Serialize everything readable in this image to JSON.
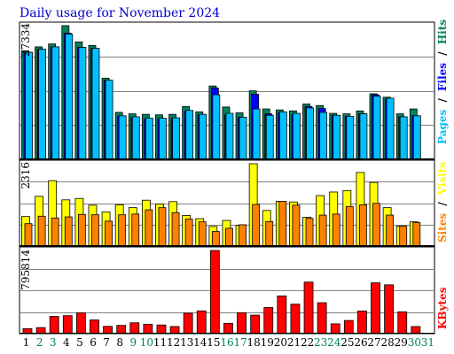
{
  "title": "Daily usage for November 2024",
  "colors": {
    "title": "#0000cc",
    "hits": "#00805c",
    "files": "#0000ff",
    "pages": "#00c0ff",
    "visits": "#ffff00",
    "sites": "#ff8000",
    "kbytes": "#ff0000",
    "weekend": "#00805c",
    "weekday": "#000000",
    "grid": "#808080"
  },
  "chart_data": [
    {
      "type": "bar",
      "panel": "hits-files-pages",
      "categories": [
        "1",
        "2",
        "3",
        "4",
        "5",
        "6",
        "7",
        "8",
        "9",
        "10",
        "11",
        "12",
        "13",
        "14",
        "15",
        "16",
        "17",
        "18",
        "19",
        "20",
        "21",
        "22",
        "23",
        "24",
        "25",
        "26",
        "27",
        "28",
        "29",
        "30",
        "31"
      ],
      "weekend_days": [
        "2",
        "3",
        "9",
        "10",
        "16",
        "17",
        "23",
        "24",
        "30",
        "31"
      ],
      "y_max_label": "27334",
      "ylim": [
        0,
        27334
      ],
      "series": [
        {
          "name": "Hits",
          "values": [
            22200,
            23000,
            23600,
            27334,
            24000,
            23300,
            16600,
            9600,
            9300,
            9200,
            9100,
            9200,
            10800,
            9700,
            15000,
            10700,
            9500,
            14000,
            10300,
            10100,
            9900,
            11300,
            11000,
            9400,
            9300,
            9900,
            13400,
            12700,
            9300,
            10300,
            0
          ]
        },
        {
          "name": "Files",
          "values": [
            21900,
            22500,
            23000,
            25800,
            22900,
            22700,
            16100,
            8800,
            8500,
            8200,
            8300,
            8400,
            9800,
            9100,
            14600,
            9100,
            8600,
            13300,
            9300,
            9500,
            9100,
            10800,
            10400,
            9000,
            8800,
            9300,
            13200,
            12300,
            8700,
            8900,
            0
          ]
        },
        {
          "name": "Pages",
          "values": [
            21900,
            22500,
            23000,
            25600,
            22900,
            22700,
            16200,
            8900,
            8700,
            8400,
            8400,
            8500,
            10000,
            9200,
            13200,
            9400,
            8600,
            10300,
            9000,
            9700,
            9400,
            10500,
            9600,
            9000,
            8800,
            9300,
            12900,
            12500,
            8700,
            8900,
            0
          ]
        }
      ]
    },
    {
      "type": "bar",
      "panel": "visits-sites",
      "categories": [
        "1",
        "2",
        "3",
        "4",
        "5",
        "6",
        "7",
        "8",
        "9",
        "10",
        "11",
        "12",
        "13",
        "14",
        "15",
        "16",
        "17",
        "18",
        "19",
        "20",
        "21",
        "22",
        "23",
        "24",
        "25",
        "26",
        "27",
        "28",
        "29",
        "30",
        "31"
      ],
      "y_max_label": "2316",
      "ylim": [
        0,
        2316
      ],
      "series": [
        {
          "name": "Visits",
          "values": [
            830,
            1400,
            1840,
            1300,
            1340,
            1150,
            960,
            1160,
            1080,
            1290,
            1180,
            1250,
            860,
            770,
            550,
            720,
            580,
            2316,
            1000,
            1260,
            1240,
            810,
            1420,
            1520,
            1560,
            2070,
            1790,
            1080,
            560,
            680,
            0
          ]
        },
        {
          "name": "Sites",
          "values": [
            630,
            840,
            790,
            820,
            890,
            880,
            700,
            880,
            900,
            1020,
            1080,
            940,
            760,
            680,
            410,
            500,
            600,
            1170,
            690,
            1260,
            1150,
            780,
            870,
            900,
            1110,
            1160,
            1200,
            870,
            560,
            660,
            0
          ]
        }
      ]
    },
    {
      "type": "bar",
      "panel": "kbytes",
      "categories": [
        "1",
        "2",
        "3",
        "4",
        "5",
        "6",
        "7",
        "8",
        "9",
        "10",
        "11",
        "12",
        "13",
        "14",
        "15",
        "16",
        "17",
        "18",
        "19",
        "20",
        "21",
        "22",
        "23",
        "24",
        "25",
        "26",
        "27",
        "28",
        "29",
        "30",
        "31"
      ],
      "y_max_label": "795814",
      "ylim": [
        0,
        795814
      ],
      "series": [
        {
          "name": "KBytes",
          "values": [
            48000,
            58000,
            165000,
            172000,
            199000,
            131000,
            70000,
            79000,
            104000,
            90000,
            83000,
            68000,
            196000,
            218000,
            795814,
            99000,
            201000,
            177000,
            250000,
            361000,
            282000,
            493000,
            296000,
            94000,
            126000,
            217000,
            486000,
            467000,
            209000,
            68000,
            0
          ]
        }
      ]
    }
  ],
  "legend_top": {
    "pages": "Pages",
    "files": "Files",
    "hits": "Hits",
    "sep": "/"
  },
  "legend_mid": {
    "sites": "Sites",
    "visits": "Visits",
    "sep": "/"
  },
  "legend_bot": {
    "kbytes": "KBytes"
  }
}
